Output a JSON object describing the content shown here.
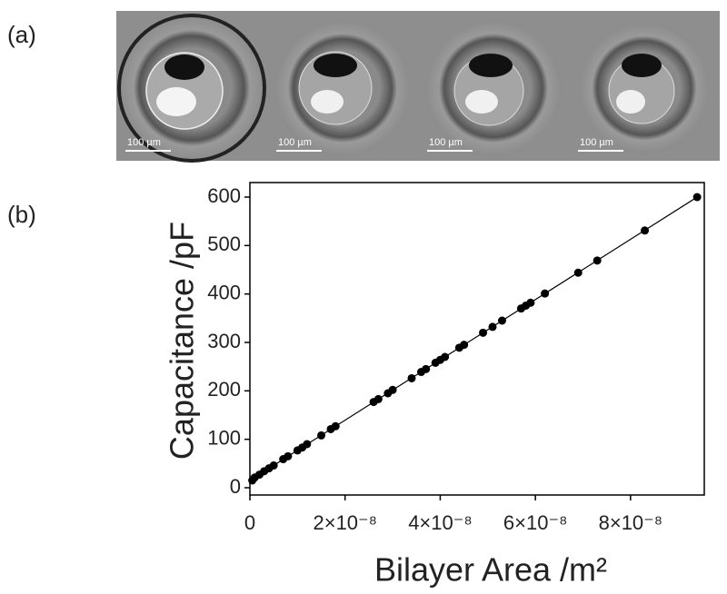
{
  "panel_a": {
    "label": "(a)",
    "scale_bars": [
      "100 µm",
      "100 µm",
      "100 µm",
      "100 µm"
    ]
  },
  "chart_data": {
    "type": "scatter",
    "panel_label": "(b)",
    "x_label": "Bilayer Area /m²",
    "y_label": "Capacitance /pF",
    "x": [
      5e-10,
      1e-09,
      2e-09,
      3e-09,
      4e-09,
      5e-09,
      7e-09,
      8e-09,
      1e-08,
      1.1e-08,
      1.2e-08,
      1.5e-08,
      1.7e-08,
      1.8e-08,
      2.6e-08,
      2.7e-08,
      2.9e-08,
      3e-08,
      3.4e-08,
      3.6e-08,
      3.7e-08,
      3.9e-08,
      4e-08,
      4.1e-08,
      4.4e-08,
      4.5e-08,
      4.9e-08,
      5.1e-08,
      5.3e-08,
      5.7e-08,
      5.8e-08,
      5.9e-08,
      6.2e-08,
      6.9e-08,
      7.3e-08,
      8.3e-08,
      9.4e-08
    ],
    "values": [
      15,
      21,
      27,
      34,
      40,
      46,
      59,
      65,
      77,
      83,
      90,
      108,
      121,
      127,
      177,
      183,
      195,
      202,
      226,
      239,
      245,
      258,
      264,
      270,
      289,
      295,
      320,
      332,
      345,
      370,
      376,
      382,
      401,
      444,
      469,
      531,
      600
    ],
    "color": "#000000",
    "fit_line": {
      "x": [
        0,
        9.4e-08
      ],
      "values": [
        15,
        600
      ]
    },
    "xlim": [
      0,
      9.55e-08
    ],
    "ylim": [
      -15,
      630
    ],
    "xticks": [
      0,
      {
        "value": 2e-08,
        "label": "2×10⁻⁸"
      },
      {
        "value": 4e-08,
        "label": "4×10⁻⁸"
      },
      {
        "value": 6e-08,
        "label": "6×10⁻⁸"
      },
      {
        "value": 8e-08,
        "label": "8×10⁻⁸"
      }
    ],
    "yticks": [
      0,
      100,
      200,
      300,
      400,
      500,
      600
    ]
  }
}
